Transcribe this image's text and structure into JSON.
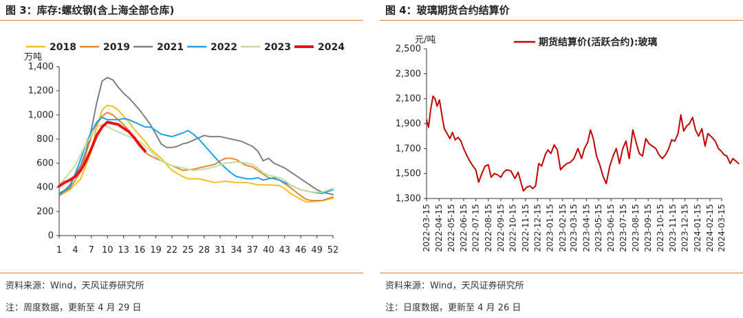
{
  "left": {
    "title": "图 3：库存:螺纹钢(含上海全部仓库)",
    "source": "资料来源：Wind，天风证券研究所",
    "note": "注：周度数据，更新至 4 月 29 日",
    "colors": {
      "2018": "#f2c11a",
      "2019": "#e8862f",
      "2021": "#7f7f7f",
      "2022": "#1aa3e8",
      "2023": "#c4dea0",
      "2024": "#e8141a"
    }
  },
  "right": {
    "title": "图 4：玻璃期货合约结算价",
    "source": "资料来源：Wind，天风证券研究所",
    "note": "注：日度数据，更新至 4 月 26 日",
    "color": "#c00000"
  },
  "chart_data": [
    {
      "type": "line",
      "ylabel": "万吨",
      "ylim": [
        0,
        1400
      ],
      "yticks": [
        0,
        200,
        400,
        600,
        800,
        1000,
        1200,
        1400
      ],
      "yticklabels": [
        "0",
        "200",
        "400",
        "600",
        "800",
        "1,000",
        "1,200",
        "1,400"
      ],
      "xlim": [
        1,
        52
      ],
      "xticks": [
        1,
        4,
        7,
        10,
        13,
        16,
        19,
        22,
        25,
        28,
        31,
        34,
        37,
        40,
        43,
        46,
        49,
        52
      ],
      "legend_position": "top",
      "grid": false,
      "series": [
        {
          "name": "2018",
          "x": [
            1,
            3,
            5,
            7,
            8,
            9,
            10,
            11,
            12,
            13,
            14,
            15,
            16,
            17,
            18,
            20,
            22,
            24,
            25,
            27,
            29,
            30,
            32,
            34,
            36,
            37,
            38,
            40,
            42,
            43,
            44,
            46,
            47,
            48,
            50,
            52
          ],
          "values": [
            330,
            380,
            470,
            700,
            900,
            1040,
            1080,
            1070,
            1040,
            990,
            940,
            880,
            830,
            780,
            720,
            640,
            540,
            490,
            470,
            470,
            450,
            440,
            450,
            440,
            440,
            430,
            420,
            420,
            415,
            390,
            350,
            300,
            280,
            280,
            290,
            310
          ]
        },
        {
          "name": "2019",
          "x": [
            1,
            3,
            5,
            6,
            7,
            8,
            9,
            10,
            11,
            12,
            13,
            14,
            15,
            16,
            17,
            18,
            20,
            22,
            24,
            26,
            28,
            30,
            31,
            32,
            33,
            34,
            35,
            36,
            37,
            38,
            39,
            40,
            42,
            44,
            46,
            47,
            48,
            50,
            52
          ],
          "values": [
            340,
            390,
            530,
            680,
            820,
            920,
            990,
            1020,
            1000,
            960,
            920,
            870,
            800,
            740,
            690,
            660,
            620,
            580,
            540,
            550,
            570,
            590,
            620,
            640,
            640,
            630,
            600,
            580,
            570,
            540,
            510,
            480,
            460,
            400,
            330,
            300,
            290,
            290,
            320
          ]
        },
        {
          "name": "2021",
          "x": [
            1,
            3,
            5,
            6,
            7,
            8,
            9,
            10,
            11,
            12,
            13,
            14,
            15,
            16,
            17,
            18,
            19,
            20,
            21,
            22,
            23,
            24,
            25,
            26,
            27,
            28,
            29,
            30,
            31,
            32,
            33,
            34,
            35,
            36,
            37,
            38,
            39,
            40,
            41,
            42,
            43,
            44,
            45,
            46,
            47,
            48,
            49,
            50,
            52
          ],
          "values": [
            330,
            420,
            580,
            700,
            880,
            1100,
            1280,
            1310,
            1290,
            1230,
            1180,
            1140,
            1090,
            1040,
            980,
            920,
            840,
            760,
            730,
            730,
            740,
            760,
            770,
            790,
            810,
            830,
            820,
            820,
            820,
            810,
            800,
            790,
            780,
            760,
            740,
            700,
            620,
            640,
            600,
            580,
            560,
            530,
            500,
            470,
            440,
            410,
            380,
            360,
            340
          ]
        },
        {
          "name": "2022",
          "x": [
            1,
            3,
            5,
            6,
            7,
            8,
            9,
            10,
            11,
            12,
            13,
            14,
            15,
            16,
            17,
            18,
            19,
            20,
            22,
            24,
            25,
            26,
            27,
            28,
            29,
            30,
            31,
            32,
            33,
            34,
            35,
            36,
            37,
            38,
            39,
            40,
            41,
            42,
            44,
            46,
            48,
            50,
            52
          ],
          "values": [
            350,
            400,
            630,
            760,
            860,
            940,
            980,
            960,
            960,
            960,
            970,
            960,
            940,
            920,
            900,
            900,
            870,
            840,
            820,
            850,
            870,
            840,
            800,
            750,
            700,
            650,
            600,
            560,
            520,
            490,
            480,
            470,
            470,
            480,
            460,
            470,
            480,
            460,
            420,
            380,
            360,
            350,
            380
          ]
        },
        {
          "name": "2023",
          "x": [
            1,
            2,
            4,
            6,
            8,
            9,
            10,
            12,
            14,
            16,
            18,
            20,
            22,
            24,
            26,
            28,
            30,
            32,
            34,
            36,
            37,
            38,
            39,
            40,
            41,
            42,
            43,
            44,
            45,
            46,
            47,
            48,
            50,
            52
          ],
          "values": [
            420,
            470,
            580,
            760,
            900,
            920,
            900,
            860,
            820,
            780,
            700,
            620,
            580,
            560,
            540,
            550,
            570,
            600,
            610,
            600,
            590,
            560,
            520,
            500,
            490,
            480,
            460,
            420,
            400,
            380,
            370,
            360,
            360,
            390
          ]
        },
        {
          "name": "2024",
          "x": [
            1,
            2,
            3,
            4,
            5,
            6,
            7,
            8,
            9,
            10,
            11,
            12,
            13,
            14,
            15,
            16,
            17
          ],
          "values": [
            410,
            440,
            460,
            490,
            540,
            620,
            720,
            830,
            900,
            940,
            930,
            920,
            890,
            860,
            810,
            750,
            700
          ]
        }
      ]
    },
    {
      "type": "line",
      "ylabel": "元/吨",
      "ylim": [
        1300,
        2500
      ],
      "yticks": [
        1300,
        1500,
        1700,
        1900,
        2100,
        2300,
        2500
      ],
      "yticklabels": [
        "1,300",
        "1,500",
        "1,700",
        "1,900",
        "2,100",
        "2,300",
        "2,500"
      ],
      "xticklabels": [
        "2022-03-15",
        "2022-04-15",
        "2022-05-15",
        "2022-06-15",
        "2022-07-15",
        "2022-08-15",
        "2022-09-15",
        "2022-10-15",
        "2022-11-15",
        "2022-12-15",
        "2023-01-15",
        "2023-02-15",
        "2023-03-15",
        "2023-04-15",
        "2023-05-15",
        "2023-06-15",
        "2023-07-15",
        "2023-08-15",
        "2023-09-15",
        "2023-10-15",
        "2023-11-15",
        "2023-12-15",
        "2024-01-15",
        "2024-02-15",
        "2024-03-15"
      ],
      "legend_position": "top-right",
      "grid": false,
      "series": [
        {
          "name": "期货结算价(活跃合约):玻璃",
          "x": [
            "2022-03-15",
            "2022-03-20",
            "2022-03-25",
            "2022-03-31",
            "2022-04-05",
            "2022-04-10",
            "2022-04-16",
            "2022-04-22",
            "2022-04-28",
            "2022-05-05",
            "2022-05-12",
            "2022-05-18",
            "2022-05-25",
            "2022-06-01",
            "2022-06-08",
            "2022-06-15",
            "2022-06-22",
            "2022-06-30",
            "2022-07-08",
            "2022-07-15",
            "2022-07-22",
            "2022-07-30",
            "2022-08-07",
            "2022-08-15",
            "2022-08-22",
            "2022-08-30",
            "2022-09-07",
            "2022-09-15",
            "2022-09-22",
            "2022-09-30",
            "2022-10-10",
            "2022-10-20",
            "2022-10-28",
            "2022-11-03",
            "2022-11-10",
            "2022-11-18",
            "2022-11-26",
            "2022-12-03",
            "2022-12-10",
            "2022-12-18",
            "2022-12-25",
            "2023-01-03",
            "2023-01-10",
            "2023-01-17",
            "2023-01-25",
            "2023-02-02",
            "2023-02-10",
            "2023-02-18",
            "2023-02-26",
            "2023-03-06",
            "2023-03-15",
            "2023-03-25",
            "2023-04-03",
            "2023-04-10",
            "2023-04-18",
            "2023-04-25",
            "2023-05-02",
            "2023-05-10",
            "2023-05-18",
            "2023-05-26",
            "2023-06-03",
            "2023-06-12",
            "2023-06-20",
            "2023-06-28",
            "2023-07-06",
            "2023-07-14",
            "2023-07-22",
            "2023-07-30",
            "2023-08-08",
            "2023-08-16",
            "2023-08-24",
            "2023-09-01",
            "2023-09-09",
            "2023-09-17",
            "2023-09-25",
            "2023-10-04",
            "2023-10-12",
            "2023-10-20",
            "2023-10-28",
            "2023-11-05",
            "2023-11-12",
            "2023-11-20",
            "2023-11-28",
            "2023-12-05",
            "2023-12-12",
            "2023-12-19",
            "2023-12-26",
            "2024-01-03",
            "2024-01-10",
            "2024-01-18",
            "2024-01-26",
            "2024-02-03",
            "2024-02-10",
            "2024-02-20",
            "2024-02-28",
            "2024-03-07",
            "2024-03-14",
            "2024-03-21",
            "2024-03-28",
            "2024-04-05",
            "2024-04-12",
            "2024-04-19",
            "2024-04-26"
          ],
          "values": [
            1930,
            1870,
            2010,
            2120,
            2100,
            2040,
            2090,
            1970,
            1860,
            1820,
            1780,
            1830,
            1770,
            1790,
            1760,
            1700,
            1650,
            1600,
            1560,
            1530,
            1430,
            1500,
            1560,
            1570,
            1470,
            1500,
            1490,
            1470,
            1510,
            1530,
            1520,
            1460,
            1510,
            1440,
            1360,
            1390,
            1400,
            1380,
            1400,
            1580,
            1560,
            1650,
            1690,
            1660,
            1730,
            1690,
            1530,
            1560,
            1580,
            1590,
            1620,
            1700,
            1620,
            1700,
            1750,
            1850,
            1780,
            1640,
            1570,
            1480,
            1420,
            1560,
            1640,
            1700,
            1580,
            1700,
            1760,
            1620,
            1850,
            1750,
            1660,
            1640,
            1780,
            1740,
            1720,
            1700,
            1650,
            1620,
            1650,
            1700,
            1770,
            1760,
            1820,
            1970,
            1840,
            1880,
            1900,
            1950,
            1850,
            1800,
            1860,
            1720,
            1820,
            1790,
            1760,
            1700,
            1680,
            1650,
            1640,
            1580,
            1620,
            1600,
            1580
          ]
        }
      ]
    }
  ]
}
